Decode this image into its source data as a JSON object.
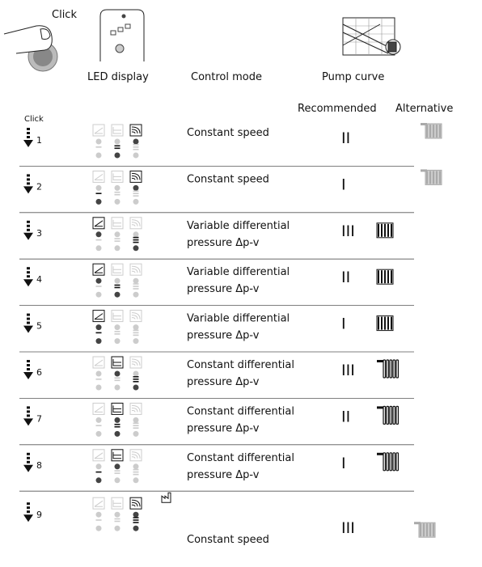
{
  "header": {
    "click": "Click",
    "led_display": "LED display",
    "control_mode": "Control mode",
    "pump_curve": "Pump curve"
  },
  "subheader": {
    "click": "Click",
    "recommended": "Recommended",
    "alternative": "Alternative"
  },
  "rows": [
    {
      "step": "1",
      "mode": [
        "Constant speed"
      ],
      "curve": "II"
    },
    {
      "step": "2",
      "mode": [
        "Constant speed"
      ],
      "curve": "I"
    },
    {
      "step": "3",
      "mode": [
        "Variable differential",
        "pressure Δp-v"
      ],
      "curve": "III"
    },
    {
      "step": "4",
      "mode": [
        "Variable differential",
        "pressure Δp-v"
      ],
      "curve": "II"
    },
    {
      "step": "5",
      "mode": [
        "Variable differential",
        "pressure Δp-v"
      ],
      "curve": "I"
    },
    {
      "step": "6",
      "mode": [
        "Constant differential",
        "pressure Δp-v"
      ],
      "curve": "III"
    },
    {
      "step": "7",
      "mode": [
        "Constant differential",
        "pressure Δp-v"
      ],
      "curve": "II"
    },
    {
      "step": "8",
      "mode": [
        "Constant differential",
        "pressure Δp-v"
      ],
      "curve": "I"
    },
    {
      "step": "9",
      "mode": [
        "Constant speed"
      ],
      "curve": "III"
    }
  ]
}
